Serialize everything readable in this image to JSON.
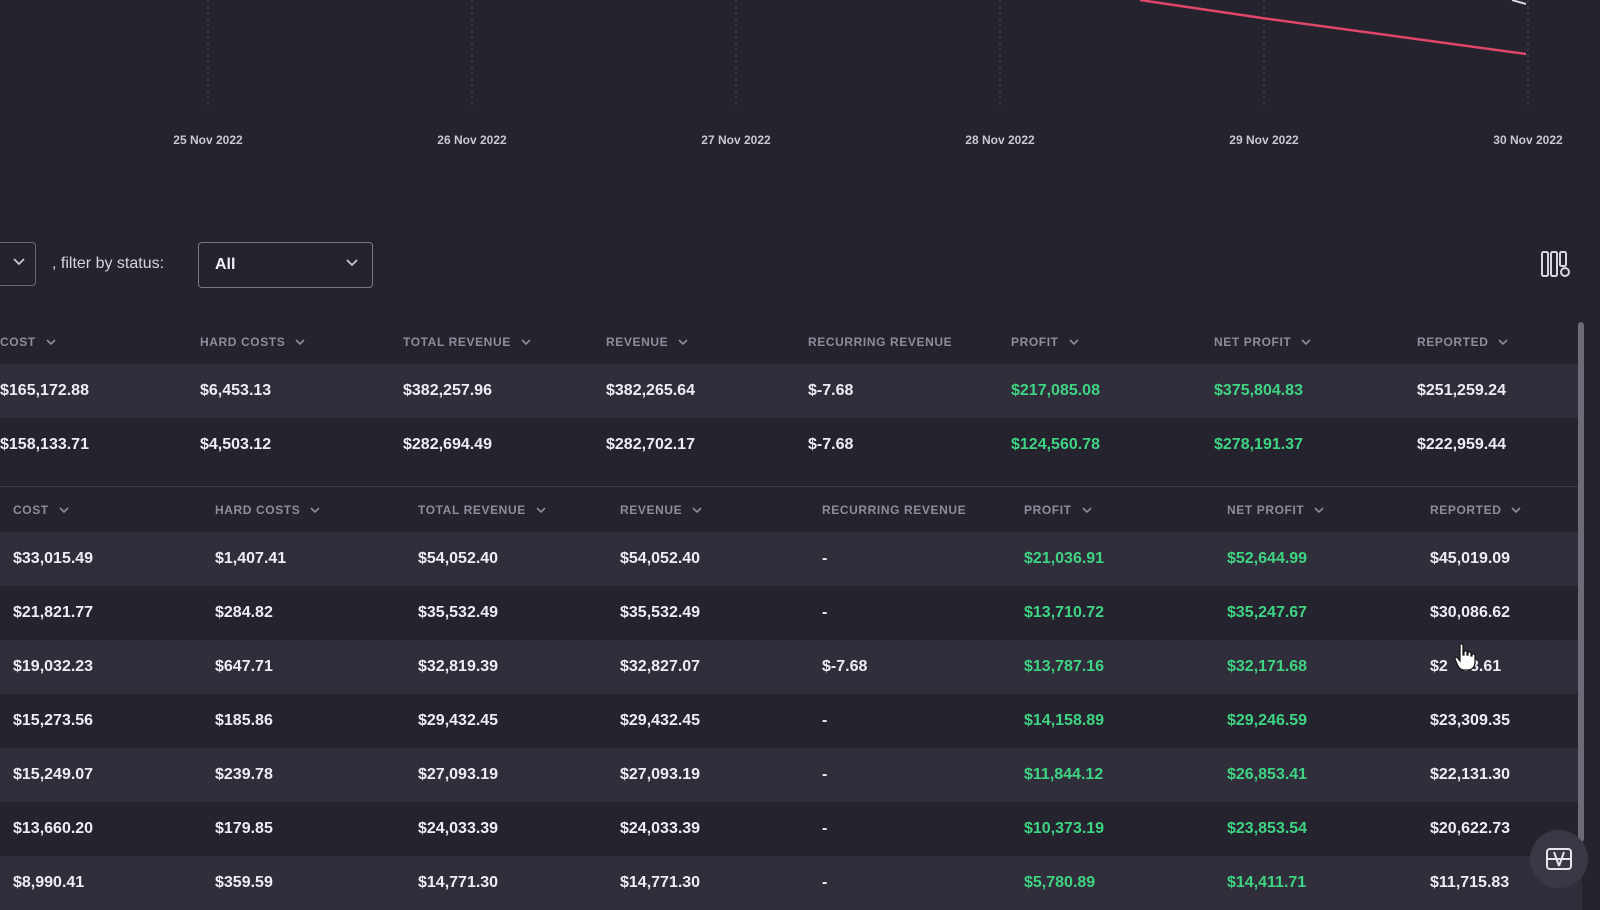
{
  "chart": {
    "dates": [
      "25 Nov 2022",
      "26 Nov 2022",
      "27 Nov 2022",
      "28 Nov 2022",
      "29 Nov 2022",
      "30 Nov 2022"
    ],
    "line_color": "#e0456a",
    "grid_color": "#4a4756"
  },
  "filter": {
    "label": ", filter by status:",
    "status_value": "All"
  },
  "table1": {
    "headers": [
      "COST",
      "HARD COSTS",
      "TOTAL REVENUE",
      "REVENUE",
      "RECURRING REVENUE",
      "PROFIT",
      "NET PROFIT",
      "REPORTED"
    ],
    "rows": [
      [
        "$165,172.88",
        "$6,453.13",
        "$382,257.96",
        "$382,265.64",
        "$-7.68",
        "$217,085.08",
        "$375,804.83",
        "$251,259.24"
      ],
      [
        "$158,133.71",
        "$4,503.12",
        "$282,694.49",
        "$282,702.17",
        "$-7.68",
        "$124,560.78",
        "$278,191.37",
        "$222,959.44"
      ]
    ]
  },
  "table2": {
    "headers": [
      "COST",
      "HARD COSTS",
      "TOTAL REVENUE",
      "REVENUE",
      "RECURRING REVENUE",
      "PROFIT",
      "NET PROFIT",
      "REPORTED"
    ],
    "rows": [
      [
        "$33,015.49",
        "$1,407.41",
        "$54,052.40",
        "$54,052.40",
        "-",
        "$21,036.91",
        "$52,644.99",
        "$45,019.09"
      ],
      [
        "$21,821.77",
        "$284.82",
        "$35,532.49",
        "$35,532.49",
        "-",
        "$13,710.72",
        "$35,247.67",
        "$30,086.62"
      ],
      [
        "$19,032.23",
        "$647.71",
        "$32,819.39",
        "$32,827.07",
        "$-7.68",
        "$13,787.16",
        "$32,171.68",
        "$2   63.61"
      ],
      [
        "$15,273.56",
        "$185.86",
        "$29,432.45",
        "$29,432.45",
        "-",
        "$14,158.89",
        "$29,246.59",
        "$23,309.35"
      ],
      [
        "$15,249.07",
        "$239.78",
        "$27,093.19",
        "$27,093.19",
        "-",
        "$11,844.12",
        "$26,853.41",
        "$22,131.30"
      ],
      [
        "$13,660.20",
        "$179.85",
        "$24,033.39",
        "$24,033.39",
        "-",
        "$10,373.19",
        "$23,853.54",
        "$20,622.73"
      ],
      [
        "$8,990.41",
        "$359.59",
        "$14,771.30",
        "$14,771.30",
        "-",
        "$5,780.89",
        "$14,411.71",
        "$11,715.83"
      ]
    ]
  },
  "colors": {
    "background": "#25232e",
    "row_alt": "#302e3a",
    "positive": "#3fd483",
    "header_text": "#8f8c9b"
  },
  "icons": {
    "columns": "column-settings-icon",
    "widget": "app-widget-icon",
    "chevron": "chevron-down-icon"
  }
}
